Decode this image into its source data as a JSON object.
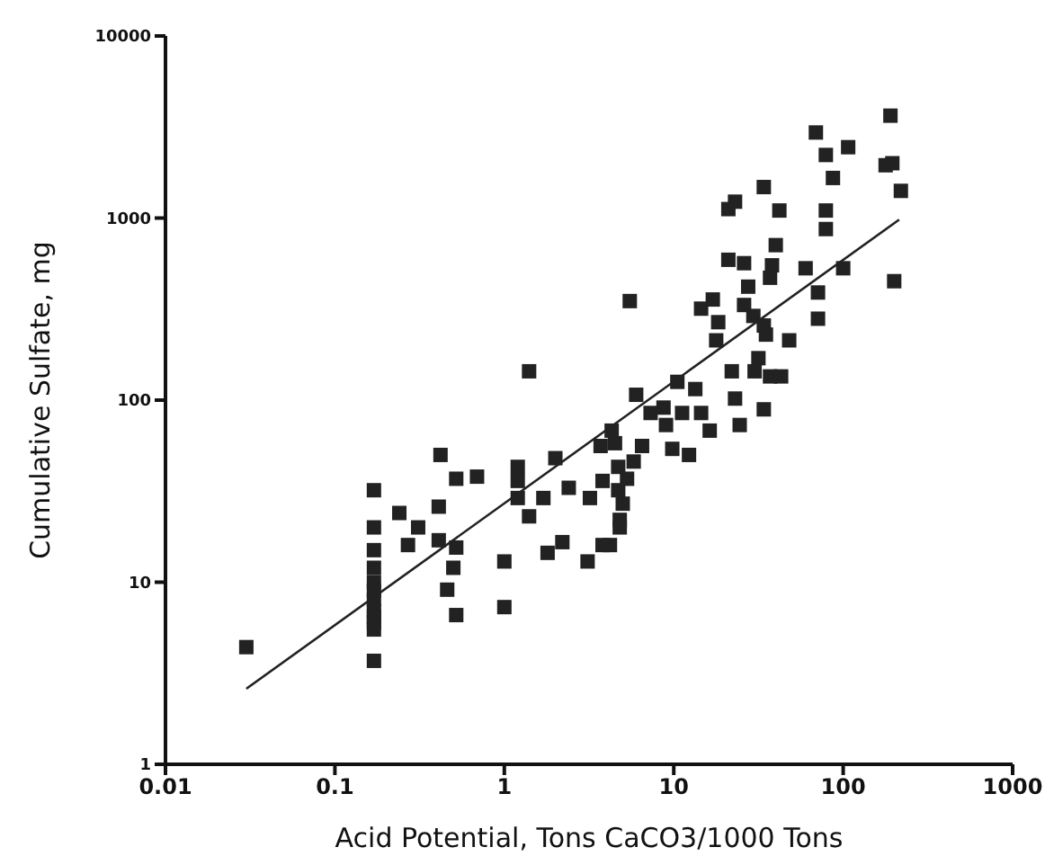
{
  "chart_data": {
    "type": "scatter",
    "xlabel": "Acid Potential, Tons CaCO3/1000 Tons",
    "ylabel": "Cumulative Sulfate, mg",
    "log": "xy",
    "xlim": [
      0.01,
      1000
    ],
    "xticks": [
      0.01,
      0.1,
      1,
      10,
      100,
      1000
    ],
    "ylim": [
      1,
      10000
    ],
    "yticks": [
      1,
      10,
      100,
      1000,
      10000
    ],
    "series": [
      {
        "marker": "square",
        "color": "#222222",
        "x": [
          0.03,
          0.17,
          0.17,
          0.17,
          0.17,
          0.17,
          0.17,
          0.17,
          0.17,
          0.17,
          0.17,
          0.17,
          0.17,
          0.24,
          0.31,
          0.27,
          0.42,
          0.52,
          0.69,
          0.41,
          0.41,
          0.52,
          0.5,
          0.46,
          0.52,
          1.0,
          1.0,
          1.2,
          1.2,
          1.2,
          1.4,
          1.4,
          1.7,
          2.0,
          2.4,
          1.8,
          2.2,
          3.1,
          3.8,
          3.2,
          3.8,
          3.7,
          4.5,
          4.7,
          4.8,
          5.5,
          4.3,
          4.7,
          5.3,
          5.0,
          4.8,
          4.2,
          5.8,
          6.0,
          6.5,
          7.3,
          8.7,
          9.0,
          9.8,
          10.5,
          11.2,
          12.3,
          13.4,
          14.5,
          16.3,
          14.5,
          17,
          17.8,
          18.3,
          21,
          23,
          21,
          26,
          22,
          23,
          24.5,
          27.5,
          26,
          29.5,
          34,
          35,
          31.6,
          30,
          37,
          43,
          34,
          34,
          42,
          40,
          38,
          37,
          48,
          60,
          71,
          71,
          69,
          79,
          107,
          87,
          79,
          79,
          100,
          190,
          195,
          178,
          219,
          200
        ],
        "values": [
          4.4,
          32,
          3.7,
          20,
          15,
          12,
          10,
          9,
          8,
          7,
          6.5,
          6,
          5.5,
          24,
          20,
          16,
          50,
          37,
          38,
          26,
          17,
          15.5,
          12,
          9.1,
          6.6,
          13,
          7.3,
          43,
          36,
          29,
          144,
          23,
          29,
          48,
          33,
          14.5,
          16.6,
          13,
          16,
          29,
          36,
          56,
          58,
          32,
          22,
          350,
          68,
          43,
          37,
          27,
          20,
          16,
          46,
          107,
          56,
          85,
          91,
          73,
          54,
          126,
          85,
          50,
          115,
          85,
          68,
          318,
          357,
          213,
          268,
          1120,
          1230,
          590,
          565,
          144,
          102,
          73,
          420,
          333,
          290,
          257,
          229,
          170,
          144,
          135,
          135,
          89,
          1480,
          1100,
          710,
          550,
          470,
          213,
          530,
          390,
          280,
          2950,
          2220,
          2450,
          1660,
          1100,
          870,
          530,
          3650,
          2000,
          1950,
          1410,
          450
        ]
      },
      {
        "type": "line",
        "color": "#222222",
        "x": [
          0.03,
          214
        ],
        "values": [
          2.6,
          980
        ]
      }
    ]
  }
}
